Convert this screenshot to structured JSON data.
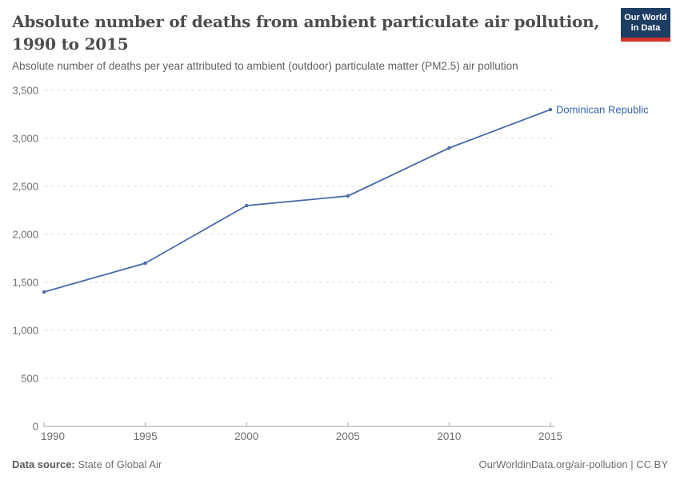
{
  "header": {
    "title_line1": "Absolute number of deaths from ambient particulate air pollution,",
    "title_line2": "1990 to 2015",
    "subtitle": "Absolute number of deaths per year attributed to ambient (outdoor) particulate matter (PM2.5) air pollution",
    "logo": {
      "line1": "Our World",
      "line2": "in Data"
    }
  },
  "chart_data": {
    "type": "line",
    "title": "Absolute number of deaths from ambient particulate air pollution, 1990 to 2015",
    "subtitle": "Absolute number of deaths per year attributed to ambient (outdoor) particulate matter (PM2.5) air pollution",
    "x": [
      1990,
      1995,
      2000,
      2005,
      2010,
      2015
    ],
    "series": [
      {
        "name": "Dominican Republic",
        "color": "#4a69a8",
        "label_color": "#3a62a8",
        "values": [
          1400,
          1700,
          2300,
          2400,
          2900,
          3300
        ]
      }
    ],
    "xlim": [
      1990,
      2015
    ],
    "ylim": [
      0,
      3500
    ],
    "yticks": [
      0,
      500,
      1000,
      1500,
      2000,
      2500,
      3000,
      3500
    ],
    "xticks": [
      1990,
      1995,
      2000,
      2005,
      2010,
      2015
    ],
    "grid": "horizontal-dashed",
    "legend_position": "end-of-line-label"
  },
  "footer": {
    "data_source_label": "Data source:",
    "data_source_value": "State of Global Air",
    "attribution": "OurWorldinData.org/air-pollution | CC BY"
  },
  "colors": {
    "logo_bg": "#1d3d63",
    "logo_stripe": "#d0342c",
    "gridline": "#dcdcdc",
    "axis": "#a3a3a3",
    "tick_label": "#6e6e6e",
    "title": "#4c4c4c",
    "subtitle": "#616161",
    "footer": "#6e6e6e"
  }
}
